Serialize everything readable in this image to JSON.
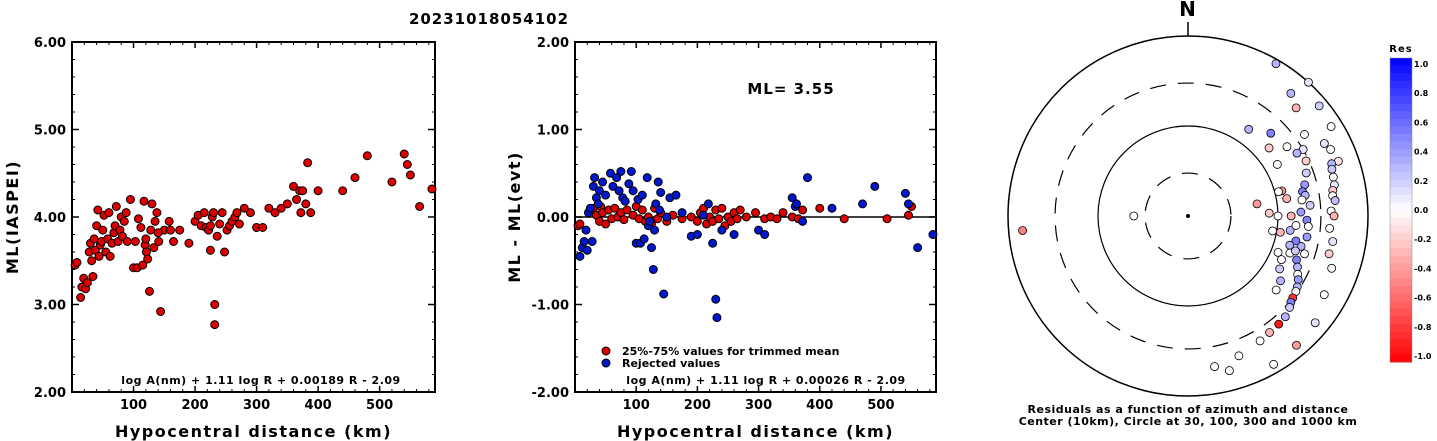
{
  "figure_title": "20231018054102",
  "chart_data": [
    {
      "type": "scatter",
      "id": "ml-vs-distance",
      "xlabel": "Hypocentral distance (km)",
      "ylabel": "ML(IASPEI)",
      "xlim": [
        0,
        590
      ],
      "ylim": [
        2.0,
        6.0
      ],
      "xticks": [
        100,
        200,
        300,
        400,
        500
      ],
      "yticks": [
        "2.00",
        "3.00",
        "4.00",
        "5.00",
        "6.00"
      ],
      "formula": "log A(nm) + 1.11 log R + 0.00189 R - 2.09",
      "marker_color": "#dd0000",
      "points": [
        [
          5,
          3.45
        ],
        [
          8,
          3.48
        ],
        [
          14,
          3.08
        ],
        [
          16,
          3.2
        ],
        [
          19,
          3.3
        ],
        [
          22,
          3.18
        ],
        [
          25,
          3.25
        ],
        [
          28,
          3.6
        ],
        [
          30,
          3.7
        ],
        [
          32,
          3.5
        ],
        [
          34,
          3.32
        ],
        [
          36,
          3.75
        ],
        [
          38,
          3.62
        ],
        [
          40,
          3.9
        ],
        [
          42,
          4.08
        ],
        [
          44,
          3.55
        ],
        [
          46,
          3.68
        ],
        [
          48,
          3.72
        ],
        [
          50,
          3.85
        ],
        [
          52,
          4.02
        ],
        [
          55,
          3.6
        ],
        [
          58,
          3.75
        ],
        [
          60,
          4.05
        ],
        [
          62,
          3.55
        ],
        [
          65,
          3.7
        ],
        [
          68,
          3.82
        ],
        [
          70,
          3.9
        ],
        [
          72,
          4.12
        ],
        [
          75,
          3.72
        ],
        [
          78,
          3.85
        ],
        [
          80,
          4.0
        ],
        [
          82,
          3.78
        ],
        [
          85,
          3.95
        ],
        [
          88,
          4.05
        ],
        [
          95,
          4.2
        ],
        [
          100,
          3.42
        ],
        [
          103,
          3.72
        ],
        [
          106,
          3.42
        ],
        [
          108,
          3.98
        ],
        [
          112,
          3.88
        ],
        [
          115,
          3.45
        ],
        [
          117,
          4.18
        ],
        [
          119,
          3.68
        ],
        [
          121,
          3.6
        ],
        [
          123,
          3.52
        ],
        [
          126,
          3.15
        ],
        [
          128,
          3.85
        ],
        [
          130,
          4.15
        ],
        [
          133,
          3.65
        ],
        [
          135,
          3.95
        ],
        [
          138,
          4.05
        ],
        [
          141,
          3.72
        ],
        [
          144,
          2.92
        ],
        [
          150,
          3.85
        ],
        [
          158,
          3.95
        ],
        [
          165,
          3.72
        ],
        [
          175,
          3.85
        ],
        [
          190,
          3.7
        ],
        [
          200,
          3.95
        ],
        [
          205,
          4.02
        ],
        [
          210,
          3.9
        ],
        [
          215,
          4.05
        ],
        [
          218,
          3.88
        ],
        [
          222,
          3.85
        ],
        [
          225,
          3.62
        ],
        [
          228,
          4.0
        ],
        [
          230,
          4.05
        ],
        [
          232,
          3.0
        ],
        [
          236,
          3.78
        ],
        [
          240,
          3.92
        ],
        [
          244,
          4.05
        ],
        [
          248,
          3.6
        ],
        [
          252,
          3.85
        ],
        [
          256,
          3.9
        ],
        [
          260,
          3.95
        ],
        [
          265,
          4.0
        ],
        [
          268,
          4.05
        ],
        [
          272,
          3.92
        ],
        [
          280,
          4.1
        ],
        [
          290,
          4.05
        ],
        [
          300,
          3.88
        ],
        [
          310,
          3.88
        ],
        [
          320,
          4.1
        ],
        [
          330,
          4.05
        ],
        [
          340,
          4.1
        ],
        [
          350,
          4.15
        ],
        [
          360,
          4.35
        ],
        [
          365,
          4.2
        ],
        [
          370,
          4.3
        ],
        [
          372,
          4.05
        ],
        [
          375,
          4.3
        ],
        [
          380,
          4.15
        ],
        [
          383,
          4.62
        ],
        [
          388,
          4.05
        ],
        [
          400,
          4.3
        ],
        [
          440,
          4.3
        ],
        [
          460,
          4.45
        ],
        [
          480,
          4.7
        ],
        [
          520,
          4.4
        ],
        [
          540,
          4.72
        ],
        [
          545,
          4.6
        ],
        [
          550,
          4.48
        ],
        [
          565,
          4.12
        ],
        [
          585,
          4.32
        ],
        [
          232,
          2.77
        ],
        [
          120,
          3.75
        ],
        [
          90,
          3.72
        ],
        [
          225,
          3.9
        ],
        [
          160,
          3.85
        ],
        [
          140,
          3.82
        ]
      ]
    },
    {
      "type": "scatter",
      "id": "residual-vs-distance",
      "xlabel": "Hypocentral distance (km)",
      "ylabel": "ML - ML(evt)",
      "xlim": [
        0,
        590
      ],
      "ylim": [
        -2.0,
        2.0
      ],
      "xticks": [
        100,
        200,
        300,
        400,
        500
      ],
      "yticks": [
        "-2.00",
        "-1.00",
        "0.00",
        "1.00",
        "2.00"
      ],
      "ml_label": "ML= 3.55",
      "formula": "log A(nm) + 1.11 log R + 0.00026 R - 2.09",
      "legend": [
        {
          "label": "25%-75% values for trimmed mean",
          "color": "#dd0000"
        },
        {
          "label": "Rejected values",
          "color": "#0018cc"
        }
      ],
      "zero_line": 0.0,
      "accepted_points": [
        [
          5,
          -0.1
        ],
        [
          8,
          -0.08
        ],
        [
          30,
          0.1
        ],
        [
          35,
          0.02
        ],
        [
          40,
          -0.05
        ],
        [
          42,
          0.12
        ],
        [
          45,
          0.05
        ],
        [
          50,
          -0.08
        ],
        [
          55,
          0.08
        ],
        [
          60,
          -0.02
        ],
        [
          65,
          0.1
        ],
        [
          70,
          0.0
        ],
        [
          75,
          0.05
        ],
        [
          80,
          -0.03
        ],
        [
          85,
          0.08
        ],
        [
          95,
          0.02
        ],
        [
          100,
          0.12
        ],
        [
          105,
          -0.02
        ],
        [
          110,
          0.08
        ],
        [
          115,
          -0.05
        ],
        [
          120,
          0.0
        ],
        [
          125,
          -0.08
        ],
        [
          130,
          0.1
        ],
        [
          135,
          -0.02
        ],
        [
          140,
          0.05
        ],
        [
          150,
          -0.05
        ],
        [
          160,
          0.02
        ],
        [
          175,
          -0.02
        ],
        [
          190,
          0.0
        ],
        [
          200,
          -0.05
        ],
        [
          205,
          0.05
        ],
        [
          210,
          0.1
        ],
        [
          215,
          -0.08
        ],
        [
          220,
          0.0
        ],
        [
          225,
          -0.05
        ],
        [
          230,
          0.08
        ],
        [
          235,
          -0.02
        ],
        [
          240,
          0.1
        ],
        [
          245,
          -0.1
        ],
        [
          250,
          0.0
        ],
        [
          255,
          -0.05
        ],
        [
          260,
          0.05
        ],
        [
          265,
          -0.02
        ],
        [
          270,
          0.08
        ],
        [
          280,
          0.0
        ],
        [
          295,
          0.05
        ],
        [
          310,
          -0.02
        ],
        [
          320,
          0.0
        ],
        [
          330,
          -0.02
        ],
        [
          340,
          0.05
        ],
        [
          355,
          0.0
        ],
        [
          365,
          -0.02
        ],
        [
          372,
          0.08
        ],
        [
          400,
          0.1
        ],
        [
          440,
          -0.02
        ],
        [
          510,
          -0.02
        ],
        [
          545,
          0.02
        ],
        [
          550,
          0.12
        ]
      ],
      "rejected_points": [
        [
          8,
          -0.45
        ],
        [
          12,
          -0.35
        ],
        [
          15,
          -0.28
        ],
        [
          18,
          -0.15
        ],
        [
          20,
          -0.38
        ],
        [
          22,
          0.05
        ],
        [
          25,
          0.1
        ],
        [
          28,
          -0.28
        ],
        [
          30,
          0.35
        ],
        [
          32,
          0.45
        ],
        [
          35,
          0.22
        ],
        [
          38,
          0.15
        ],
        [
          40,
          0.3
        ],
        [
          45,
          0.4
        ],
        [
          50,
          0.25
        ],
        [
          58,
          0.5
        ],
        [
          62,
          0.35
        ],
        [
          68,
          0.45
        ],
        [
          72,
          0.3
        ],
        [
          75,
          0.52
        ],
        [
          78,
          0.22
        ],
        [
          82,
          0.18
        ],
        [
          88,
          0.38
        ],
        [
          92,
          0.52
        ],
        [
          95,
          0.3
        ],
        [
          100,
          -0.3
        ],
        [
          103,
          0.2
        ],
        [
          107,
          -0.3
        ],
        [
          110,
          0.25
        ],
        [
          113,
          -0.25
        ],
        [
          118,
          0.45
        ],
        [
          120,
          -0.1
        ],
        [
          122,
          -0.05
        ],
        [
          125,
          -0.35
        ],
        [
          128,
          -0.6
        ],
        [
          130,
          -0.15
        ],
        [
          132,
          0.15
        ],
        [
          136,
          0.4
        ],
        [
          140,
          0.28
        ],
        [
          145,
          -0.88
        ],
        [
          150,
          0.0
        ],
        [
          155,
          0.22
        ],
        [
          165,
          0.25
        ],
        [
          175,
          0.05
        ],
        [
          190,
          -0.22
        ],
        [
          200,
          -0.2
        ],
        [
          210,
          0.02
        ],
        [
          218,
          0.15
        ],
        [
          225,
          -0.3
        ],
        [
          230,
          -0.94
        ],
        [
          232,
          -1.15
        ],
        [
          240,
          -0.15
        ],
        [
          260,
          -0.2
        ],
        [
          300,
          -0.15
        ],
        [
          310,
          -0.2
        ],
        [
          355,
          0.22
        ],
        [
          360,
          0.12
        ],
        [
          362,
          0.15
        ],
        [
          380,
          0.45
        ],
        [
          420,
          0.1
        ],
        [
          470,
          0.15
        ],
        [
          490,
          0.35
        ],
        [
          540,
          0.27
        ],
        [
          545,
          0.15
        ],
        [
          560,
          -0.35
        ],
        [
          585,
          -0.2
        ],
        [
          372,
          -0.05
        ],
        [
          138,
          0.08
        ]
      ]
    },
    {
      "type": "scatter",
      "id": "polar-residuals",
      "north_label": "N",
      "caption_line1": "Residuals as a function of azimuth and distance",
      "caption_line2": "Center (10km), Circle at 30, 100, 300 and 1000 km",
      "colorbar": {
        "title": "Res",
        "range": [
          -1.0,
          1.0
        ],
        "ticks": [
          "1.0",
          "0.8",
          "0.6",
          "0.4",
          "0.2",
          "0.0",
          "-0.2",
          "-0.4",
          "-0.6",
          "-0.8",
          "-1.0"
        ],
        "positive_color": "#0000ff",
        "negative_color": "#ff0000"
      },
      "points": [
        [
          42,
          1000,
          0.1
        ],
        [
          30,
          900,
          0.3
        ],
        [
          50,
          800,
          0.2
        ],
        [
          58,
          750,
          0.0
        ],
        [
          70,
          600,
          -0.1
        ],
        [
          65,
          560,
          0.0
        ],
        [
          62,
          520,
          0.1
        ],
        [
          70,
          500,
          0.3
        ],
        [
          72,
          480,
          0.2
        ],
        [
          75,
          470,
          0.0
        ],
        [
          78,
          460,
          0.1
        ],
        [
          80,
          430,
          -0.2
        ],
        [
          82,
          420,
          0.0
        ],
        [
          84,
          440,
          0.25
        ],
        [
          88,
          390,
          0.0
        ],
        [
          90,
          420,
          -0.3
        ],
        [
          95,
          380,
          0.0
        ],
        [
          100,
          430,
          0.1
        ],
        [
          105,
          420,
          -0.2
        ],
        [
          110,
          500,
          0.0
        ],
        [
          120,
          560,
          0.0
        ],
        [
          130,
          700,
          0.1
        ],
        [
          140,
          750,
          -0.4
        ],
        [
          150,
          800,
          0.0
        ],
        [
          165,
          600,
          0.0
        ],
        [
          40,
          600,
          0.3
        ],
        [
          45,
          500,
          -0.3
        ],
        [
          55,
          380,
          0.0
        ],
        [
          60,
          300,
          0.1
        ],
        [
          65,
          280,
          -0.2
        ],
        [
          70,
          250,
          0.2
        ],
        [
          75,
          220,
          0.4
        ],
        [
          78,
          200,
          0.5
        ],
        [
          80,
          210,
          0.3
        ],
        [
          82,
          190,
          0.0
        ],
        [
          85,
          230,
          0.2
        ],
        [
          88,
          180,
          0.4
        ],
        [
          92,
          210,
          0.5
        ],
        [
          95,
          220,
          0.0
        ],
        [
          100,
          220,
          0.4
        ],
        [
          105,
          200,
          0.3
        ],
        [
          108,
          230,
          0.0
        ],
        [
          112,
          200,
          0.5
        ],
        [
          115,
          220,
          0.3
        ],
        [
          118,
          240,
          0.0
        ],
        [
          120,
          260,
          0.4
        ],
        [
          123,
          280,
          0.3
        ],
        [
          125,
          290,
          0.0
        ],
        [
          128,
          300,
          -0.8
        ],
        [
          130,
          310,
          0.5
        ],
        [
          132,
          330,
          0.2
        ],
        [
          136,
          360,
          0.3
        ],
        [
          140,
          370,
          -0.9
        ],
        [
          145,
          380,
          -0.3
        ],
        [
          150,
          400,
          0.0
        ],
        [
          160,
          450,
          0.0
        ],
        [
          170,
          500,
          0.0
        ],
        [
          50,
          150,
          -0.2
        ],
        [
          60,
          140,
          0.0
        ],
        [
          75,
          120,
          -0.4
        ],
        [
          90,
          100,
          0.0
        ],
        [
          100,
          110,
          -0.3
        ],
        [
          112,
          120,
          0.0
        ],
        [
          75,
          110,
          0.0
        ],
        [
          80,
          130,
          -0.3
        ],
        [
          90,
          140,
          -0.3
        ],
        [
          88,
          80,
          -0.2
        ],
        [
          80,
          60,
          -0.4
        ],
        [
          100,
          90,
          0.0
        ],
        [
          270,
          40,
          0.0
        ],
        [
          265,
          700,
          -0.5
        ],
        [
          35,
          150,
          0.3
        ],
        [
          45,
          200,
          0.5
        ],
        [
          55,
          220,
          0.0
        ],
        [
          60,
          250,
          0.3
        ],
        [
          115,
          140,
          0.0
        ],
        [
          120,
          150,
          0.2
        ],
        [
          110,
          160,
          0.0
        ],
        [
          125,
          180,
          0.3
        ],
        [
          130,
          190,
          0.0
        ],
        [
          98,
          140,
          0.3
        ],
        [
          95,
          160,
          0.0
        ],
        [
          103,
          170,
          0.5
        ],
        [
          106,
          150,
          0.3
        ],
        [
          108,
          180,
          0.2
        ]
      ]
    }
  ]
}
